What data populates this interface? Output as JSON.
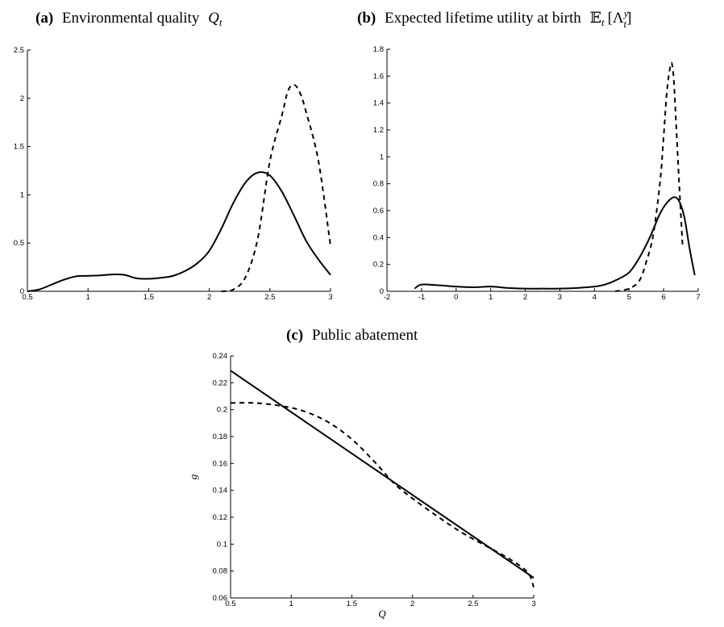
{
  "chart_data": [
    {
      "id": "a",
      "type": "line",
      "title_label": "(a)",
      "title": "Environmental quality",
      "title_math": "Q",
      "title_sub": "t",
      "xlabel": "",
      "ylabel": "",
      "xlim": [
        0.5,
        3
      ],
      "ylim": [
        0,
        2.5
      ],
      "xticks": [
        "0.5",
        "1",
        "1.5",
        "2",
        "2.5",
        "3"
      ],
      "yticks": [
        "0",
        "0.5",
        "1",
        "1.5",
        "2",
        "2.5"
      ],
      "grid": false,
      "series": [
        {
          "style": "solid",
          "x": [
            0.5,
            0.6,
            0.7,
            0.8,
            0.9,
            1.0,
            1.1,
            1.2,
            1.3,
            1.4,
            1.5,
            1.6,
            1.7,
            1.8,
            1.9,
            2.0,
            2.1,
            2.2,
            2.3,
            2.4,
            2.5,
            2.6,
            2.7,
            2.8,
            2.9,
            3.0
          ],
          "y": [
            0.0,
            0.02,
            0.07,
            0.12,
            0.155,
            0.16,
            0.165,
            0.175,
            0.17,
            0.135,
            0.13,
            0.14,
            0.16,
            0.21,
            0.29,
            0.42,
            0.65,
            0.92,
            1.13,
            1.23,
            1.2,
            1.03,
            0.78,
            0.52,
            0.33,
            0.17
          ]
        },
        {
          "style": "dashed",
          "x": [
            2.1,
            2.2,
            2.3,
            2.4,
            2.5,
            2.6,
            2.65,
            2.7,
            2.75,
            2.8,
            2.9,
            3.0
          ],
          "y": [
            0.0,
            0.02,
            0.15,
            0.55,
            1.35,
            1.83,
            2.08,
            2.14,
            2.05,
            1.85,
            1.35,
            0.47
          ]
        }
      ]
    },
    {
      "id": "b",
      "type": "line",
      "title_label": "(b)",
      "title": "Expected lifetime utility at birth",
      "title_math": "𝔼",
      "title_sub": "t",
      "title_tail": "[Λ",
      "title_tail_sup": "y",
      "title_tail_sub": "t",
      "title_close": "]",
      "xlabel": "",
      "ylabel": "",
      "xlim": [
        -2,
        7
      ],
      "ylim": [
        0,
        1.8
      ],
      "xticks": [
        "-2",
        "-1",
        "0",
        "1",
        "2",
        "3",
        "4",
        "5",
        "6",
        "7"
      ],
      "yticks": [
        "0",
        "0.2",
        "0.4",
        "0.6",
        "0.8",
        "1",
        "1.2",
        "1.4",
        "1.6",
        "1.8"
      ],
      "grid": false,
      "series": [
        {
          "style": "solid",
          "x": [
            -1.2,
            -1.0,
            -0.5,
            0.0,
            0.5,
            1.0,
            1.5,
            2.0,
            2.5,
            3.0,
            3.5,
            4.0,
            4.3,
            4.6,
            5.0,
            5.3,
            5.6,
            5.9,
            6.1,
            6.3,
            6.45,
            6.6,
            6.75,
            6.9
          ],
          "y": [
            0.02,
            0.05,
            0.045,
            0.035,
            0.03,
            0.035,
            0.025,
            0.02,
            0.02,
            0.02,
            0.025,
            0.035,
            0.05,
            0.08,
            0.14,
            0.25,
            0.4,
            0.58,
            0.66,
            0.7,
            0.67,
            0.55,
            0.32,
            0.12
          ]
        },
        {
          "style": "dashed",
          "x": [
            4.6,
            5.0,
            5.3,
            5.5,
            5.7,
            5.9,
            6.0,
            6.1,
            6.2,
            6.25,
            6.3,
            6.35,
            6.45,
            6.55
          ],
          "y": [
            0.0,
            0.02,
            0.08,
            0.22,
            0.42,
            0.82,
            1.15,
            1.5,
            1.68,
            1.68,
            1.55,
            1.3,
            0.8,
            0.33
          ]
        }
      ]
    },
    {
      "id": "c",
      "type": "line",
      "title_label": "(c)",
      "title": "Public abatement",
      "xlabel": "Q",
      "ylabel": "g",
      "xlim": [
        0.5,
        3
      ],
      "ylim": [
        0.06,
        0.24
      ],
      "xticks": [
        "0.5",
        "1",
        "1.5",
        "2",
        "2.5",
        "3"
      ],
      "yticks": [
        "0.06",
        "0.08",
        "0.1",
        "0.12",
        "0.14",
        "0.16",
        "0.18",
        "0.2",
        "0.22",
        "0.24"
      ],
      "grid": false,
      "series": [
        {
          "style": "solid",
          "x": [
            0.5,
            3.0
          ],
          "y": [
            0.229,
            0.075
          ]
        },
        {
          "style": "dashed",
          "x": [
            0.5,
            0.7,
            0.9,
            1.1,
            1.3,
            1.5,
            1.7,
            1.85,
            2.0,
            2.2,
            2.4,
            2.6,
            2.8,
            2.95,
            3.0
          ],
          "y": [
            0.205,
            0.205,
            0.203,
            0.199,
            0.191,
            0.178,
            0.16,
            0.145,
            0.134,
            0.121,
            0.109,
            0.099,
            0.089,
            0.079,
            0.068
          ]
        }
      ]
    }
  ]
}
